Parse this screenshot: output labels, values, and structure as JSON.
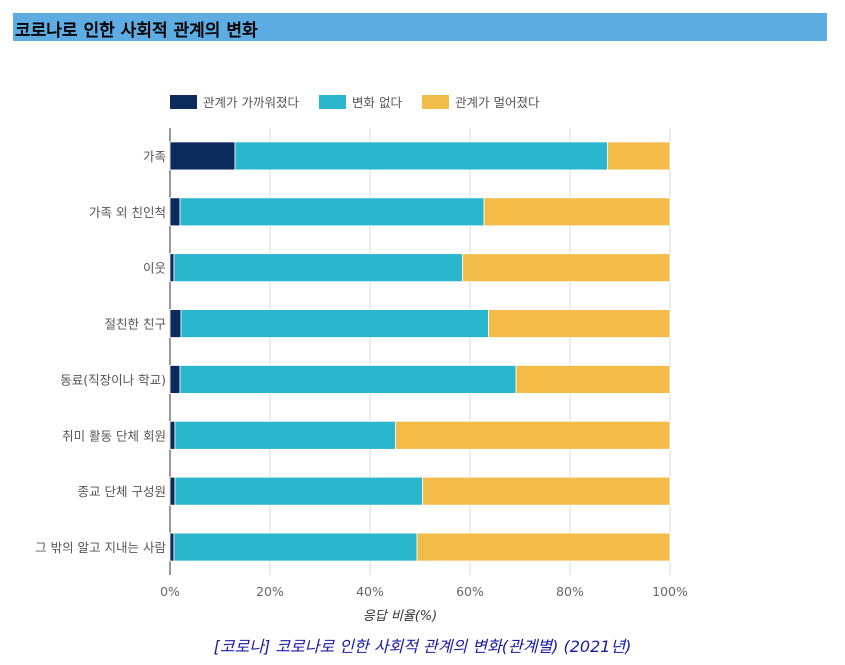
{
  "header": {
    "title": "코로나로 인한 사회적 관계의 변화"
  },
  "caption": "[코로나] 코로나로 인한 사회적 관계의 변화(관계별) (2021년)",
  "colors": {
    "closer": "#0d2a5c",
    "nochange": "#2ab6cc",
    "farther": "#f3bc48",
    "grid": "#d9d9d9",
    "axis": "#666666"
  },
  "chart_data": {
    "type": "bar",
    "orientation": "horizontal",
    "stacked": true,
    "categories": [
      "가족",
      "가족 외 친인척",
      "이웃",
      "절친한 친구",
      "동료(직장이나 학교)",
      "취미 활동 단체 회원",
      "종교 단체 구성원",
      "그 밖의 알고 지내는 사람"
    ],
    "series": [
      {
        "name": "관계가 가까워졌다",
        "values": [
          13.0,
          2.0,
          0.8,
          2.2,
          2.0,
          1.0,
          1.0,
          0.8
        ]
      },
      {
        "name": "변화 없다",
        "values": [
          74.5,
          60.8,
          57.7,
          61.5,
          67.2,
          44.1,
          49.5,
          48.6
        ]
      },
      {
        "name": "관계가 멀어졌다",
        "values": [
          12.5,
          37.2,
          41.5,
          36.3,
          30.8,
          54.9,
          49.5,
          50.6
        ]
      }
    ],
    "xlabel": "응답 비율(%)",
    "xlim": [
      0,
      100
    ],
    "xticks": [
      "0%",
      "20%",
      "40%",
      "60%",
      "80%",
      "100%"
    ],
    "legend_position": "top"
  }
}
